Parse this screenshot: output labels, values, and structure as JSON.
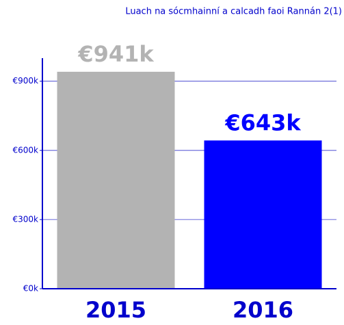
{
  "chart_data": {
    "type": "bar",
    "title": "Luach na sócmhainní a calcadh faoi Rannán 2(1)",
    "categories": [
      "2015",
      "2016"
    ],
    "values": [
      941000,
      643000
    ],
    "value_labels": [
      "€941k",
      "€643k"
    ],
    "colors": [
      "#b3b3b3",
      "#0000ff"
    ],
    "ylim": [
      0,
      1000000
    ],
    "yticks": [
      {
        "value": 0,
        "label": "€0k"
      },
      {
        "value": 300000,
        "label": "€300k"
      },
      {
        "value": 600000,
        "label": "€600k"
      },
      {
        "value": 900000,
        "label": "€900k"
      }
    ],
    "grid": true
  }
}
